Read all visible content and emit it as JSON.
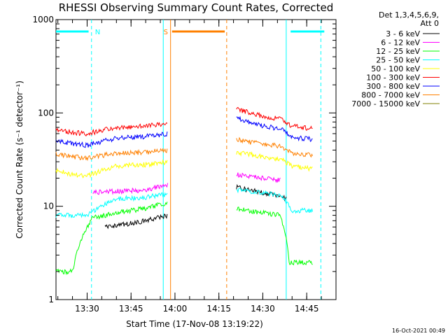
{
  "chart_data": {
    "type": "line",
    "title": "RHESSI Observing Summary Count Rates, Corrected",
    "xlabel": "Start Time (17-Nov-08 13:19:22)",
    "ylabel": "Corrected Count Rate (s⁻¹ detector⁻¹)",
    "yscale": "log",
    "ylim": [
      1,
      1000
    ],
    "y_ticks": [
      1,
      10,
      100,
      1000
    ],
    "y_tick_labels": [
      "1",
      "10",
      "100",
      "1000"
    ],
    "x_range_minutes": [
      "13:19:22",
      "14:55:00"
    ],
    "x_ticks": [
      "13:30",
      "13:45",
      "14:00",
      "14:15",
      "14:30",
      "14:45"
    ],
    "legend": {
      "placement": "right",
      "header": [
        "Det 1,3,4,5,6,9,",
        "Att 0"
      ]
    },
    "series": [
      {
        "name": "3 - 6 keV",
        "color": "#000000",
        "segments": [
          {
            "x": [
              "13:19:22",
              "13:32",
              "13:36",
              "13:44",
              "13:50",
              "13:57:30"
            ],
            "y": [
              null,
              null,
              6,
              6.5,
              7,
              8
            ]
          },
          {
            "x": [
              "14:21",
              "14:25",
              "14:30",
              "14:36",
              "14:38"
            ],
            "y": [
              16,
              15,
              14,
              13,
              12
            ]
          }
        ]
      },
      {
        "name": "6 - 12 keV",
        "color": "#ff00ff",
        "segments": [
          {
            "x": [
              "13:32",
              "13:40",
              "13:50",
              "13:57:30"
            ],
            "y": [
              14,
              14.5,
              15,
              17
            ]
          },
          {
            "x": [
              "14:21",
              "14:30",
              "14:36",
              "14:38",
              "14:47"
            ],
            "y": [
              22,
              20,
              19,
              null,
              null
            ]
          }
        ]
      },
      {
        "name": "12 - 25 keV",
        "color": "#00ff00",
        "segments": [
          {
            "x": [
              "13:19:22",
              "13:25",
              "13:32",
              "13:40",
              "13:50",
              "13:57:30"
            ],
            "y": [
              2,
              2,
              7.5,
              8.5,
              9.5,
              11
            ]
          },
          {
            "x": [
              "14:21",
              "14:30",
              "14:36",
              "14:39",
              "14:47"
            ],
            "y": [
              9.5,
              8.5,
              8,
              2.5,
              2.5
            ]
          }
        ]
      },
      {
        "name": "25 - 50 keV",
        "color": "#00ffff",
        "segments": [
          {
            "x": [
              "13:19:22",
              "13:25",
              "13:30",
              "13:40",
              "13:50",
              "13:57:30"
            ],
            "y": [
              8,
              8,
              8,
              12,
              12.5,
              13.5
            ]
          },
          {
            "x": [
              "14:21",
              "14:30",
              "14:36",
              "14:40",
              "14:47"
            ],
            "y": [
              15,
              14,
              13,
              9,
              9
            ]
          }
        ]
      },
      {
        "name": "50 - 100 keV",
        "color": "#ffff00",
        "segments": [
          {
            "x": [
              "13:19:22",
              "13:25",
              "13:30",
              "13:40",
              "13:50",
              "13:57:30"
            ],
            "y": [
              24,
              22,
              21,
              27,
              28,
              30
            ]
          },
          {
            "x": [
              "14:21",
              "14:30",
              "14:36",
              "14:40",
              "14:47"
            ],
            "y": [
              38,
              34,
              32,
              27,
              25
            ]
          }
        ]
      },
      {
        "name": "100 - 300 keV",
        "color": "#ff0000",
        "segments": [
          {
            "x": [
              "13:19:22",
              "13:25",
              "13:30",
              "13:40",
              "13:50",
              "13:57:30"
            ],
            "y": [
              66,
              62,
              60,
              70,
              72,
              78
            ]
          },
          {
            "x": [
              "14:21",
              "14:30",
              "14:36",
              "14:40",
              "14:47"
            ],
            "y": [
              110,
              92,
              86,
              72,
              68
            ]
          }
        ]
      },
      {
        "name": "300 - 800 keV",
        "color": "#0000ff",
        "segments": [
          {
            "x": [
              "13:19:22",
              "13:25",
              "13:30",
              "13:40",
              "13:50",
              "13:57:30"
            ],
            "y": [
              50,
              47,
              45,
              54,
              56,
              60
            ]
          },
          {
            "x": [
              "14:21",
              "14:30",
              "14:36",
              "14:40",
              "14:47"
            ],
            "y": [
              88,
              72,
              68,
              55,
              52
            ]
          }
        ]
      },
      {
        "name": "800 - 7000 keV",
        "color": "#ff8000",
        "segments": [
          {
            "x": [
              "13:19:22",
              "13:25",
              "13:30",
              "13:40",
              "13:50",
              "13:57:30"
            ],
            "y": [
              36,
              34,
              33,
              37,
              38,
              40
            ]
          },
          {
            "x": [
              "14:21",
              "14:30",
              "14:36",
              "14:40",
              "14:47"
            ],
            "y": [
              52,
              46,
              44,
              37,
              35
            ]
          }
        ]
      },
      {
        "name": "7000 - 15000 keV",
        "color": "#808000",
        "segments": []
      }
    ],
    "flags": [
      {
        "label": "N",
        "color": "#00ffff",
        "spans": [
          [
            "13:19:22",
            "13:30:30"
          ],
          [
            "14:39:30",
            "14:51"
          ]
        ]
      },
      {
        "label": "S",
        "color": "#ff8000",
        "spans": [
          [
            "13:59",
            "14:17"
          ]
        ]
      }
    ],
    "vertical_markers": [
      {
        "time": "13:31:30",
        "color": "#00ffff",
        "style": "dashed"
      },
      {
        "time": "13:56",
        "color": "#00ffff",
        "style": "solid"
      },
      {
        "time": "13:58:30",
        "color": "#ff8000",
        "style": "solid"
      },
      {
        "time": "14:17:40",
        "color": "#ff8000",
        "style": "dashed"
      },
      {
        "time": "14:38",
        "color": "#00ffff",
        "style": "solid"
      },
      {
        "time": "14:49:50",
        "color": "#00ffff",
        "style": "dashed"
      }
    ],
    "gap": [
      "13:58:30",
      "14:21"
    ]
  },
  "footer": {
    "timestamp": "16-Oct-2021 00:49"
  }
}
